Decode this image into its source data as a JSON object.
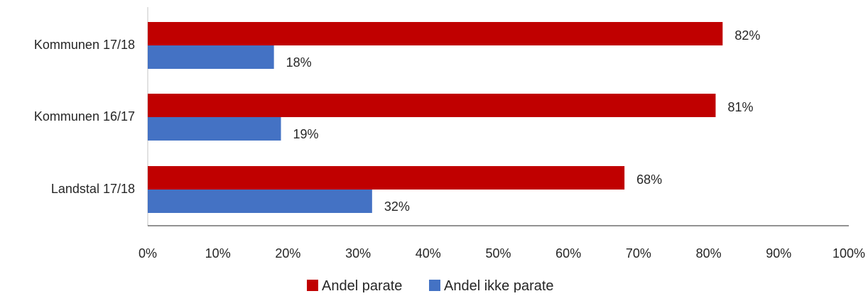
{
  "chart_data": {
    "type": "bar",
    "orientation": "horizontal",
    "categories": [
      "Kommunen 17/18",
      "Kommunen 16/17",
      "Landstal 17/18"
    ],
    "series": [
      {
        "name": "Andel parate",
        "color": "#C00000",
        "values": [
          82,
          81,
          68
        ],
        "labels": [
          "82%",
          "81%",
          "68%"
        ]
      },
      {
        "name": "Andel ikke parate",
        "color": "#4472C4",
        "values": [
          18,
          19,
          32
        ],
        "labels": [
          "18%",
          "19%",
          "32%"
        ]
      }
    ],
    "x_ticks": [
      "0%",
      "10%",
      "20%",
      "30%",
      "40%",
      "50%",
      "60%",
      "70%",
      "80%",
      "90%",
      "100%"
    ],
    "xlim": [
      0,
      100
    ],
    "legend_position": "bottom",
    "grid": false
  }
}
